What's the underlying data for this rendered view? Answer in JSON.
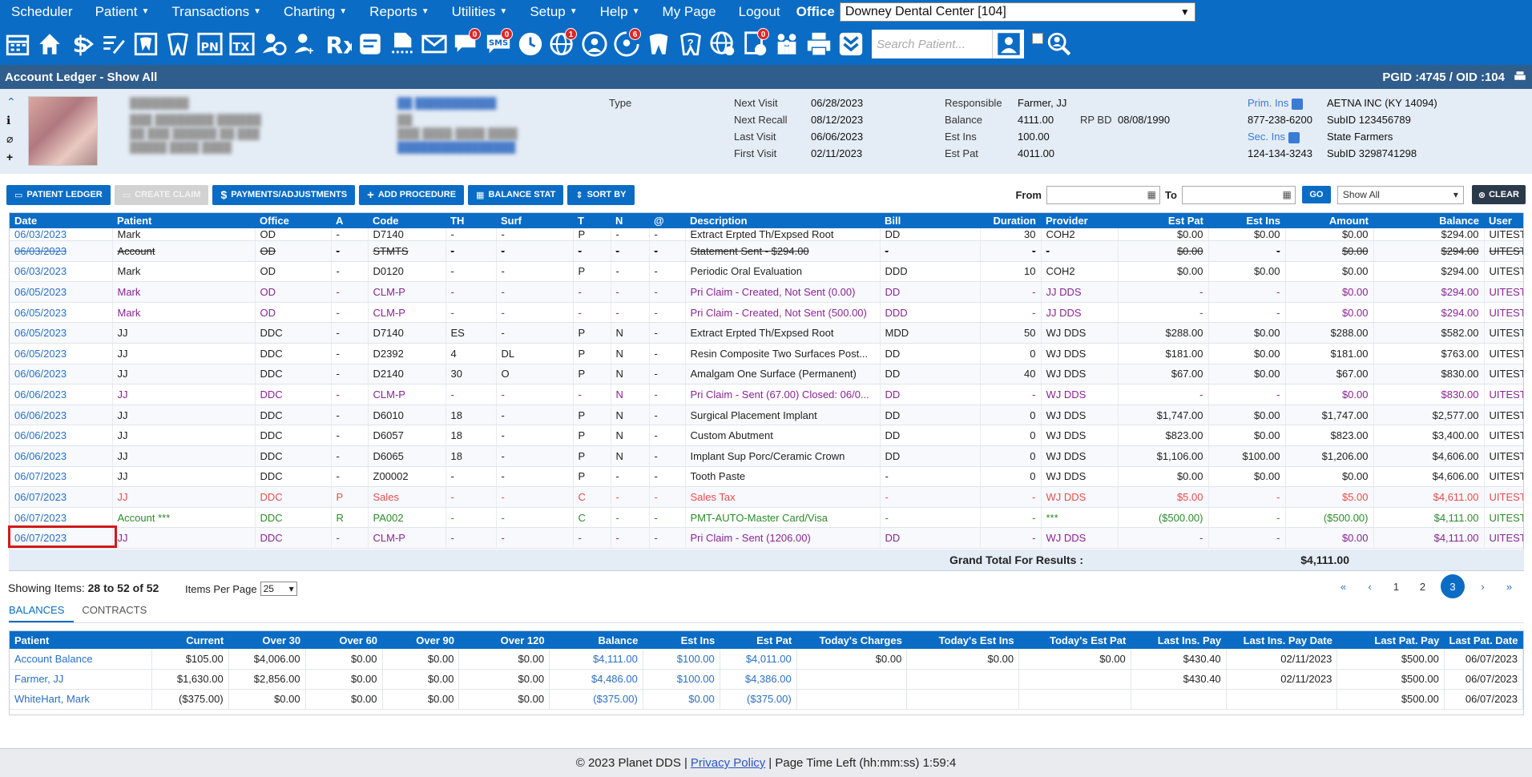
{
  "nav": {
    "items": [
      {
        "label": "Scheduler",
        "caret": false
      },
      {
        "label": "Patient",
        "caret": true
      },
      {
        "label": "Transactions",
        "caret": true
      },
      {
        "label": "Charting",
        "caret": true
      },
      {
        "label": "Reports",
        "caret": true
      },
      {
        "label": "Utilities",
        "caret": true
      },
      {
        "label": "Setup",
        "caret": true
      },
      {
        "label": "Help",
        "caret": true
      },
      {
        "label": "My Page",
        "caret": false
      },
      {
        "label": "Logout",
        "caret": false
      }
    ],
    "office_label": "Office",
    "office_value": "Downey Dental Center [104]"
  },
  "toolbar": {
    "search_placeholder": "Search Patient...",
    "badges": {
      "messages": "0",
      "sms": "0",
      "web1": "1",
      "web2": "6",
      "bill": "0"
    }
  },
  "title": {
    "left": "Account Ledger - Show All",
    "right": "PGID :4745  /  OID :104"
  },
  "patient": {
    "type_label": "Type",
    "next_visit_label": "Next Visit",
    "next_visit": "06/28/2023",
    "next_recall_label": "Next Recall",
    "next_recall": "08/12/2023",
    "last_visit_label": "Last Visit",
    "last_visit": "06/06/2023",
    "first_visit_label": "First Visit",
    "first_visit": "02/11/2023",
    "responsible_label": "Responsible",
    "responsible": "Farmer, JJ",
    "balance_label": "Balance",
    "balance": "4111.00",
    "rpbd_label": "RP BD",
    "rpbd": "08/08/1990",
    "est_ins_label": "Est Ins",
    "est_ins": "100.00",
    "est_pat_label": "Est Pat",
    "est_pat": "4011.00",
    "prim_ins_label": "Prim. Ins",
    "prim_ins": "AETNA INC (KY 14094)",
    "prim_phone": "877-238-6200",
    "prim_subid_label": "SubID",
    "prim_subid": "123456789",
    "sec_ins_label": "Sec. Ins",
    "sec_ins": "State Farmers",
    "sec_phone": "124-134-3243",
    "sec_subid_label": "SubID",
    "sec_subid": "3298741298"
  },
  "actions": {
    "patient_ledger": "PATIENT LEDGER",
    "create_claim": "CREATE CLAIM",
    "payments": "PAYMENTS/ADJUSTMENTS",
    "add_procedure": "ADD PROCEDURE",
    "balance_stat": "BALANCE STAT",
    "sort_by": "SORT BY",
    "from_label": "From",
    "to_label": "To",
    "go": "GO",
    "show_select": "Show All",
    "clear": "CLEAR"
  },
  "ledger": {
    "headers": [
      "Date",
      "Patient",
      "Office",
      "A",
      "Code",
      "TH",
      "Surf",
      "T",
      "N",
      "@",
      "Description",
      "Bill",
      "Duration",
      "Provider",
      "Est Pat",
      "Est Ins",
      "Amount",
      "Balance",
      "User"
    ],
    "rows": [
      {
        "style": "partial",
        "cells": [
          "06/03/2023",
          "Mark",
          "OD",
          "-",
          "D7140",
          "-",
          "-",
          "P",
          "-",
          "-",
          "Extract Erpted Th/Expsed Root",
          "DD",
          "30",
          "COH2",
          "$0.00",
          "$0.00",
          "$0.00",
          "$294.00",
          "UITESTING"
        ]
      },
      {
        "style": "strike",
        "cells": [
          "06/03/2023",
          "Account",
          "OD",
          "-",
          "STMTS",
          "-",
          "-",
          "-",
          "-",
          "-",
          "Statement Sent - $294.00",
          "-",
          "-",
          "-",
          "$0.00",
          "-",
          "$0.00",
          "$294.00",
          "UITESTING"
        ]
      },
      {
        "style": "",
        "cells": [
          "06/03/2023",
          "Mark",
          "OD",
          "-",
          "D0120",
          "-",
          "-",
          "P",
          "-",
          "-",
          "Periodic Oral Evaluation",
          "DDD",
          "10",
          "COH2",
          "$0.00",
          "$0.00",
          "$0.00",
          "$294.00",
          "UITESTING"
        ]
      },
      {
        "style": "claim",
        "cells": [
          "06/05/2023",
          "Mark",
          "OD",
          "-",
          "CLM-P",
          "-",
          "-",
          "-",
          "-",
          "-",
          "Pri Claim - Created, Not Sent (0.00)",
          "DD",
          "-",
          "JJ DDS",
          "-",
          "-",
          "$0.00",
          "$294.00",
          "UITESTING"
        ]
      },
      {
        "style": "claim",
        "cells": [
          "06/05/2023",
          "Mark",
          "OD",
          "-",
          "CLM-P",
          "-",
          "-",
          "-",
          "-",
          "-",
          "Pri Claim - Created, Not Sent (500.00)",
          "DDD",
          "-",
          "JJ DDS",
          "-",
          "-",
          "$0.00",
          "$294.00",
          "UITESTING"
        ]
      },
      {
        "style": "",
        "cells": [
          "06/05/2023",
          "JJ",
          "DDC",
          "-",
          "D7140",
          "ES",
          "-",
          "P",
          "N",
          "-",
          "Extract Erpted Th/Expsed Root",
          "MDD",
          "50",
          "WJ DDS",
          "$288.00",
          "$0.00",
          "$288.00",
          "$582.00",
          "UITESTING"
        ]
      },
      {
        "style": "",
        "cells": [
          "06/05/2023",
          "JJ",
          "DDC",
          "-",
          "D2392",
          "4",
          "DL",
          "P",
          "N",
          "-",
          "Resin Composite Two Surfaces Post...",
          "DD",
          "0",
          "WJ DDS",
          "$181.00",
          "$0.00",
          "$181.00",
          "$763.00",
          "UITESTING"
        ]
      },
      {
        "style": "",
        "cells": [
          "06/06/2023",
          "JJ",
          "DDC",
          "-",
          "D2140",
          "30",
          "O",
          "P",
          "N",
          "-",
          "Amalgam One Surface (Permanent)",
          "DD",
          "40",
          "WJ DDS",
          "$67.00",
          "$0.00",
          "$67.00",
          "$830.00",
          "UITESTING"
        ]
      },
      {
        "style": "claim",
        "cells": [
          "06/06/2023",
          "JJ",
          "DDC",
          "-",
          "CLM-P",
          "-",
          "-",
          "-",
          "N",
          "-",
          "Pri Claim - Sent (67.00) Closed: 06/0...",
          "DD",
          "-",
          "WJ DDS",
          "-",
          "-",
          "$0.00",
          "$830.00",
          "UITESTING"
        ]
      },
      {
        "style": "",
        "cells": [
          "06/06/2023",
          "JJ",
          "DDC",
          "-",
          "D6010",
          "18",
          "-",
          "P",
          "N",
          "-",
          "Surgical Placement Implant",
          "DD",
          "0",
          "WJ DDS",
          "$1,747.00",
          "$0.00",
          "$1,747.00",
          "$2,577.00",
          "UITESTING"
        ]
      },
      {
        "style": "",
        "cells": [
          "06/06/2023",
          "JJ",
          "DDC",
          "-",
          "D6057",
          "18",
          "-",
          "P",
          "N",
          "-",
          "Custom Abutment",
          "DD",
          "0",
          "WJ DDS",
          "$823.00",
          "$0.00",
          "$823.00",
          "$3,400.00",
          "UITESTING"
        ]
      },
      {
        "style": "",
        "cells": [
          "06/06/2023",
          "JJ",
          "DDC",
          "-",
          "D6065",
          "18",
          "-",
          "P",
          "N",
          "-",
          "Implant Sup Porc/Ceramic Crown",
          "DD",
          "0",
          "WJ DDS",
          "$1,106.00",
          "$100.00",
          "$1,206.00",
          "$4,606.00",
          "UITESTING"
        ]
      },
      {
        "style": "",
        "cells": [
          "06/07/2023",
          "JJ",
          "DDC",
          "-",
          "Z00002",
          "-",
          "-",
          "P",
          "-",
          "-",
          "Tooth Paste",
          "-",
          "0",
          "WJ DDS",
          "$0.00",
          "$0.00",
          "$0.00",
          "$4,606.00",
          "UITESTING"
        ]
      },
      {
        "style": "tax",
        "cells": [
          "06/07/2023",
          "JJ",
          "DDC",
          "P",
          "Sales",
          "-",
          "-",
          "C",
          "-",
          "-",
          "Sales Tax",
          "-",
          "-",
          "WJ DDS",
          "$5.00",
          "-",
          "$5.00",
          "$4,611.00",
          "UITESTING"
        ]
      },
      {
        "style": "pmt",
        "cells": [
          "06/07/2023",
          "Account ***",
          "DDC",
          "R",
          "PA002",
          "-",
          "-",
          "C",
          "-",
          "-",
          "PMT-AUTO-Master Card/Visa",
          "-",
          "-",
          "***",
          "($500.00)",
          "-",
          "($500.00)",
          "$4,111.00",
          "UITESTING"
        ]
      },
      {
        "style": "claim",
        "cells": [
          "06/07/2023",
          "JJ",
          "DDC",
          "-",
          "CLM-P",
          "-",
          "-",
          "-",
          "-",
          "-",
          "Pri Claim - Sent (1206.00)",
          "DD",
          "-",
          "WJ DDS",
          "-",
          "-",
          "$0.00",
          "$4,111.00",
          "UITESTING"
        ]
      }
    ],
    "grand_label": "Grand Total For Results :",
    "grand_value": "$4,111.00"
  },
  "paging": {
    "showing_label": "Showing Items:",
    "showing_value": "28 to 52 of 52",
    "ipp_label": "Items Per Page",
    "ipp_value": "25",
    "first": "«",
    "prev": "‹",
    "pages": [
      "1",
      "2",
      "3"
    ],
    "next": "›",
    "last": "»"
  },
  "tabs": [
    "BALANCES",
    "CONTRACTS"
  ],
  "balances": {
    "headers": [
      "Patient",
      "Current",
      "Over 30",
      "Over 60",
      "Over 90",
      "Over 120",
      "Balance",
      "Est Ins",
      "Est Pat",
      "Today's Charges",
      "Today's Est Ins",
      "Today's Est Pat",
      "Last Ins. Pay",
      "Last Ins. Pay Date",
      "Last Pat. Pay",
      "Last Pat. Date"
    ],
    "rows": [
      [
        "Account Balance",
        "$105.00",
        "$4,006.00",
        "$0.00",
        "$0.00",
        "$0.00",
        "$4,111.00",
        "$100.00",
        "$4,011.00",
        "$0.00",
        "$0.00",
        "$0.00",
        "$430.40",
        "02/11/2023",
        "$500.00",
        "06/07/2023"
      ],
      [
        "Farmer, JJ",
        "$1,630.00",
        "$2,856.00",
        "$0.00",
        "$0.00",
        "$0.00",
        "$4,486.00",
        "$100.00",
        "$4,386.00",
        "",
        "",
        "",
        "$430.40",
        "02/11/2023",
        "$500.00",
        "06/07/2023"
      ],
      [
        "WhiteHart, Mark",
        "($375.00)",
        "$0.00",
        "$0.00",
        "$0.00",
        "$0.00",
        "($375.00)",
        "$0.00",
        "($375.00)",
        "",
        "",
        "",
        "",
        "",
        "$500.00",
        "06/07/2023"
      ]
    ]
  },
  "footer": {
    "copyright": "© 2023 Planet DDS |",
    "privacy": "Privacy Policy",
    "time": "|  Page Time Left (hh:mm:ss) 1:59:4"
  }
}
